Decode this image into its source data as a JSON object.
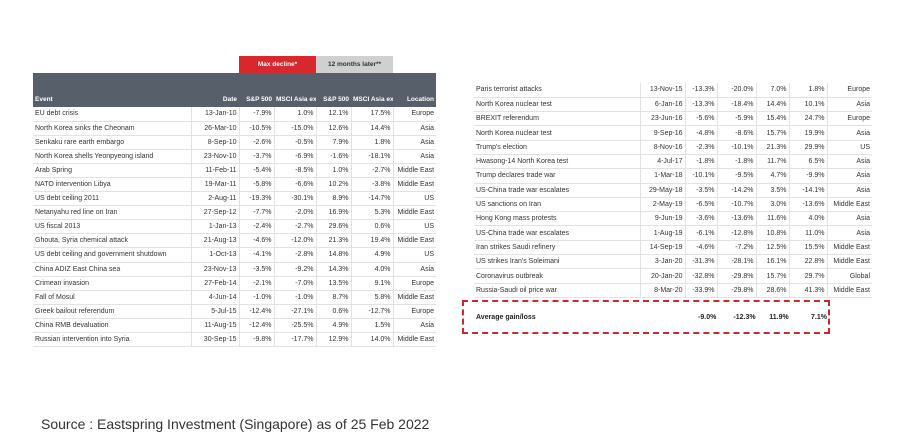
{
  "headers": {
    "max_decline": "Max decline*",
    "months_later": "12 months later**",
    "event": "Event",
    "date": "Date",
    "sp500": "S&P 500",
    "msci": "MSCI Asia ex Japan",
    "location": "Location"
  },
  "left_rows": [
    {
      "event": "EU debt crisis",
      "date": "13-Jan-10",
      "sp_dec": "-7.9%",
      "msci_dec": "1.0%",
      "sp_12": "12.1%",
      "msci_12": "17.5%",
      "location": "Europe"
    },
    {
      "event": "North Korea sinks the Cheonam",
      "date": "26-Mar-10",
      "sp_dec": "-10.5%",
      "msci_dec": "-15.0%",
      "sp_12": "12.6%",
      "msci_12": "14.4%",
      "location": "Asia"
    },
    {
      "event": "Senkaku rare earth embargo",
      "date": "8-Sep-10",
      "sp_dec": "-2.6%",
      "msci_dec": "-0.5%",
      "sp_12": "7.9%",
      "msci_12": "1.8%",
      "location": "Asia"
    },
    {
      "event": "North Korea shells Yeonpyeong island",
      "date": "23-Nov-10",
      "sp_dec": "-3.7%",
      "msci_dec": "-6.9%",
      "sp_12": "-1.6%",
      "msci_12": "-18.1%",
      "location": "Asia"
    },
    {
      "event": "Arab Spring",
      "date": "11-Feb-11",
      "sp_dec": "-5.4%",
      "msci_dec": "-8.5%",
      "sp_12": "1.0%",
      "msci_12": "-2.7%",
      "location": "Middle East"
    },
    {
      "event": "NATO intervention Libya",
      "date": "19-Mar-11",
      "sp_dec": "-5.8%",
      "msci_dec": "-6.6%",
      "sp_12": "10.2%",
      "msci_12": "-3.8%",
      "location": "Middle East"
    },
    {
      "event": "US debt ceiling 2011",
      "date": "2-Aug-11",
      "sp_dec": "-19.3%",
      "msci_dec": "-30.1%",
      "sp_12": "8.9%",
      "msci_12": "-14.7%",
      "location": "US"
    },
    {
      "event": "Netanyahu red line on Iran",
      "date": "27-Sep-12",
      "sp_dec": "-7.7%",
      "msci_dec": "-2.0%",
      "sp_12": "16.9%",
      "msci_12": "5.3%",
      "location": "Middle East"
    },
    {
      "event": "US fiscal 2013",
      "date": "1-Jan-13",
      "sp_dec": "-2.4%",
      "msci_dec": "-2.7%",
      "sp_12": "29.6%",
      "msci_12": "0.6%",
      "location": "US"
    },
    {
      "event": "Ghouta, Syria chemical attack",
      "date": "21-Aug-13",
      "sp_dec": "-4.6%",
      "msci_dec": "-12.0%",
      "sp_12": "21.3%",
      "msci_12": "19.4%",
      "location": "Middle East"
    },
    {
      "event": "US debt ceiling and government shutdown",
      "date": "1-Oct-13",
      "sp_dec": "-4.1%",
      "msci_dec": "-2.8%",
      "sp_12": "14.8%",
      "msci_12": "4.9%",
      "location": "US"
    },
    {
      "event": "China ADIZ East China sea",
      "date": "23-Nov-13",
      "sp_dec": "-3.5%",
      "msci_dec": "-9.2%",
      "sp_12": "14.3%",
      "msci_12": "4.0%",
      "location": "Asia"
    },
    {
      "event": "Crimean invasion",
      "date": "27-Feb-14",
      "sp_dec": "-2.1%",
      "msci_dec": "-7.0%",
      "sp_12": "13.5%",
      "msci_12": "9.1%",
      "location": "Europe"
    },
    {
      "event": "Fall of Mosul",
      "date": "4-Jun-14",
      "sp_dec": "-1.0%",
      "msci_dec": "-1.0%",
      "sp_12": "8.7%",
      "msci_12": "5.8%",
      "location": "Middle East"
    },
    {
      "event": "Greek bailout referendum",
      "date": "5-Jul-15",
      "sp_dec": "-12.4%",
      "msci_dec": "-27.1%",
      "sp_12": "0.6%",
      "msci_12": "-12.7%",
      "location": "Europe"
    },
    {
      "event": "China RMB devaluation",
      "date": "11-Aug-15",
      "sp_dec": "-12.4%",
      "msci_dec": "-25.5%",
      "sp_12": "4.9%",
      "msci_12": "1.5%",
      "location": "Asia"
    },
    {
      "event": "Russian intervention into Syria",
      "date": "30-Sep-15",
      "sp_dec": "-9.8%",
      "msci_dec": "-17.7%",
      "sp_12": "12.9%",
      "msci_12": "14.0%",
      "location": "Middle East"
    }
  ],
  "right_rows": [
    {
      "event": "Paris terrorist attacks",
      "date": "13-Nov-15",
      "sp_dec": "-13.3%",
      "msci_dec": "-20.0%",
      "sp_12": "7.0%",
      "msci_12": "1.8%",
      "location": "Europe"
    },
    {
      "event": "North Korea nuclear test",
      "date": "6-Jan-16",
      "sp_dec": "-13.3%",
      "msci_dec": "-18.4%",
      "sp_12": "14.4%",
      "msci_12": "10.1%",
      "location": "Asia"
    },
    {
      "event": "BREXIT referendum",
      "date": "23-Jun-16",
      "sp_dec": "-5.6%",
      "msci_dec": "-5.9%",
      "sp_12": "15.4%",
      "msci_12": "24.7%",
      "location": "Europe"
    },
    {
      "event": "North Korea nuclear test",
      "date": "9-Sep-16",
      "sp_dec": "-4.8%",
      "msci_dec": "-8.6%",
      "sp_12": "15.7%",
      "msci_12": "19.9%",
      "location": "Asia"
    },
    {
      "event": "Trump's election",
      "date": "8-Nov-16",
      "sp_dec": "-2.3%",
      "msci_dec": "-10.1%",
      "sp_12": "21.3%",
      "msci_12": "29.9%",
      "location": "US"
    },
    {
      "event": "Hwasong-14 North Korea test",
      "date": "4-Jul-17",
      "sp_dec": "-1.8%",
      "msci_dec": "-1.8%",
      "sp_12": "11.7%",
      "msci_12": "6.5%",
      "location": "Asia"
    },
    {
      "event": "Trump declares trade war",
      "date": "1-Mar-18",
      "sp_dec": "-10.1%",
      "msci_dec": "-9.5%",
      "sp_12": "4.7%",
      "msci_12": "-9.9%",
      "location": "Asia"
    },
    {
      "event": "US-China trade war escalates",
      "date": "29-May-18",
      "sp_dec": "-3.5%",
      "msci_dec": "-14.2%",
      "sp_12": "3.5%",
      "msci_12": "-14.1%",
      "location": "Asia"
    },
    {
      "event": "US sanctions on Iran",
      "date": "2-May-19",
      "sp_dec": "-6.5%",
      "msci_dec": "-10.7%",
      "sp_12": "3.0%",
      "msci_12": "-13.6%",
      "location": "Middle East"
    },
    {
      "event": "Hong Kong mass protests",
      "date": "9-Jun-19",
      "sp_dec": "-3.6%",
      "msci_dec": "-13.6%",
      "sp_12": "11.6%",
      "msci_12": "4.0%",
      "location": "Asia"
    },
    {
      "event": "US-China trade war escalates",
      "date": "1-Aug-19",
      "sp_dec": "-6.1%",
      "msci_dec": "-12.8%",
      "sp_12": "10.8%",
      "msci_12": "11.0%",
      "location": "Asia"
    },
    {
      "event": "Iran strikes Saudi refinery",
      "date": "14-Sep-19",
      "sp_dec": "-4.6%",
      "msci_dec": "-7.2%",
      "sp_12": "12.5%",
      "msci_12": "15.5%",
      "location": "Middle East"
    },
    {
      "event": "US strikes Iran's Soleimani",
      "date": "3-Jan-20",
      "sp_dec": "-31.3%",
      "msci_dec": "-28.1%",
      "sp_12": "16.1%",
      "msci_12": "22.8%",
      "location": "Middle East"
    },
    {
      "event": "Coronavirus outbreak",
      "date": "20-Jan-20",
      "sp_dec": "-32.8%",
      "msci_dec": "-29.8%",
      "sp_12": "15.7%",
      "msci_12": "29.7%",
      "location": "Global"
    },
    {
      "event": "Russia-Saudi oil price war",
      "date": "8-Mar-20",
      "sp_dec": "-33.9%",
      "msci_dec": "-29.8%",
      "sp_12": "28.6%",
      "msci_12": "41.3%",
      "location": "Middle East"
    }
  ],
  "average": {
    "label": "Average gain/loss",
    "sp_dec": "-9.0%",
    "msci_dec": "-12.3%",
    "sp_12": "11.9%",
    "msci_12": "7.1%"
  },
  "source": "Source : Eastspring Investment (Singapore) as of 25 Feb 2022",
  "colors": {
    "header_bg": "#57606a",
    "decline": "#d9272e",
    "later": "#d0d0d0",
    "avg_border": "#c92a2a"
  }
}
